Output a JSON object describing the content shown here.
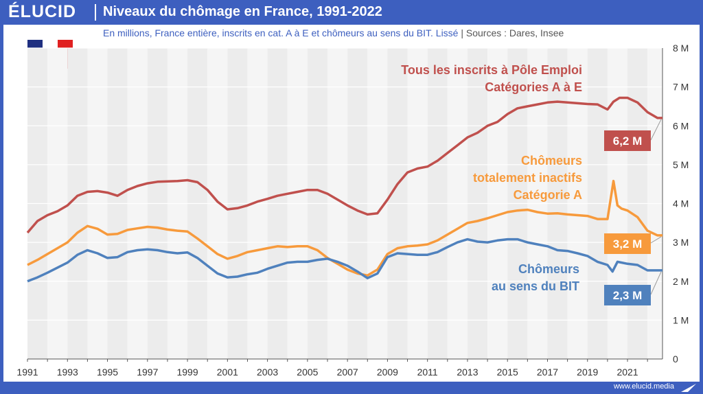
{
  "header": {
    "logo": "ÉLUCID",
    "title": "Niveaux du chômage en France, 1991-2022",
    "subtitle": "En millions, France entière, inscrits en cat. A à E et chômeurs au sens du BIT. Lissé",
    "sources": "| Sources : Dares, Insee"
  },
  "footer": {
    "url": "www.elucid.media"
  },
  "flag": {
    "colors": [
      "#1f2f80",
      "#ffffff",
      "#e02020"
    ]
  },
  "chart_data": {
    "type": "line",
    "xlim": [
      1991,
      2022.75
    ],
    "ylim": [
      0,
      8
    ],
    "grid": true,
    "y_ticks": [
      {
        "value": 0,
        "label": "0"
      },
      {
        "value": 1,
        "label": "1 M"
      },
      {
        "value": 2,
        "label": "2 M"
      },
      {
        "value": 3,
        "label": "3 M"
      },
      {
        "value": 4,
        "label": "4 M"
      },
      {
        "value": 5,
        "label": "5 M"
      },
      {
        "value": 6,
        "label": "6 M"
      },
      {
        "value": 7,
        "label": "7 M"
      },
      {
        "value": 8,
        "label": "8 M"
      }
    ],
    "x_ticks": [
      "1991",
      "1993",
      "1995",
      "1997",
      "1999",
      "2001",
      "2003",
      "2005",
      "2007",
      "2009",
      "2011",
      "2013",
      "2015",
      "2017",
      "2019",
      "2021"
    ],
    "series": [
      {
        "name": "Tous les inscrits à Pôle Emploi Catégories A à E",
        "color": "#c0504d",
        "label_lines": [
          "Tous les inscrits à Pôle Emploi",
          "Catégories A à E"
        ],
        "end_label": "6,2 M",
        "x": [
          1991,
          1991.5,
          1992,
          1992.5,
          1993,
          1993.5,
          1994,
          1994.5,
          1995,
          1995.5,
          1996,
          1996.5,
          1997,
          1997.5,
          1998,
          1998.5,
          1999,
          1999.5,
          2000,
          2000.5,
          2001,
          2001.5,
          2002,
          2002.5,
          2003,
          2003.5,
          2004,
          2004.5,
          2005,
          2005.5,
          2006,
          2006.5,
          2007,
          2007.5,
          2008,
          2008.5,
          2009,
          2009.5,
          2010,
          2010.5,
          2011,
          2011.5,
          2012,
          2012.5,
          2013,
          2013.5,
          2014,
          2014.5,
          2015,
          2015.5,
          2016,
          2016.5,
          2017,
          2017.5,
          2018,
          2018.5,
          2019,
          2019.5,
          2020,
          2020.3,
          2020.6,
          2021,
          2021.5,
          2022,
          2022.5,
          2022.75
        ],
        "y": [
          3.25,
          3.55,
          3.7,
          3.8,
          3.95,
          4.2,
          4.3,
          4.32,
          4.28,
          4.2,
          4.35,
          4.45,
          4.52,
          4.56,
          4.57,
          4.58,
          4.6,
          4.55,
          4.35,
          4.05,
          3.85,
          3.88,
          3.95,
          4.05,
          4.12,
          4.2,
          4.25,
          4.3,
          4.35,
          4.35,
          4.25,
          4.1,
          3.95,
          3.82,
          3.72,
          3.75,
          4.1,
          4.5,
          4.8,
          4.9,
          4.95,
          5.1,
          5.3,
          5.5,
          5.7,
          5.82,
          6.0,
          6.1,
          6.3,
          6.45,
          6.5,
          6.55,
          6.6,
          6.62,
          6.6,
          6.58,
          6.56,
          6.55,
          6.42,
          6.62,
          6.72,
          6.72,
          6.6,
          6.35,
          6.2,
          6.2
        ]
      },
      {
        "name": "Chômeurs totalement inactifs Catégorie A",
        "color": "#f79a3c",
        "label_lines": [
          "Chômeurs",
          "totalement inactifs",
          "Catégorie A"
        ],
        "end_label": "3,2 M",
        "x": [
          1991,
          1991.5,
          1992,
          1992.5,
          1993,
          1993.5,
          1994,
          1994.5,
          1995,
          1995.5,
          1996,
          1996.5,
          1997,
          1997.5,
          1998,
          1998.5,
          1999,
          1999.5,
          2000,
          2000.5,
          2001,
          2001.5,
          2002,
          2002.5,
          2003,
          2003.5,
          2004,
          2004.5,
          2005,
          2005.5,
          2006,
          2006.5,
          2007,
          2007.5,
          2008,
          2008.5,
          2009,
          2009.5,
          2010,
          2010.5,
          2011,
          2011.5,
          2012,
          2012.5,
          2013,
          2013.5,
          2014,
          2014.5,
          2015,
          2015.5,
          2016,
          2016.5,
          2017,
          2017.5,
          2018,
          2018.5,
          2019,
          2019.5,
          2020,
          2020.3,
          2020.5,
          2020.7,
          2021,
          2021.5,
          2022,
          2022.5,
          2022.75
        ],
        "y": [
          2.42,
          2.55,
          2.7,
          2.85,
          3.0,
          3.25,
          3.42,
          3.35,
          3.2,
          3.22,
          3.32,
          3.36,
          3.4,
          3.38,
          3.33,
          3.3,
          3.28,
          3.1,
          2.9,
          2.7,
          2.58,
          2.65,
          2.75,
          2.8,
          2.85,
          2.9,
          2.88,
          2.9,
          2.9,
          2.8,
          2.6,
          2.45,
          2.3,
          2.2,
          2.15,
          2.3,
          2.7,
          2.85,
          2.9,
          2.92,
          2.95,
          3.05,
          3.2,
          3.35,
          3.5,
          3.55,
          3.62,
          3.7,
          3.78,
          3.82,
          3.84,
          3.78,
          3.74,
          3.75,
          3.72,
          3.7,
          3.68,
          3.6,
          3.6,
          4.58,
          3.95,
          3.87,
          3.82,
          3.65,
          3.3,
          3.18,
          3.18
        ]
      },
      {
        "name": "Chômeurs au sens du BIT",
        "color": "#4f81bd",
        "label_lines": [
          "Chômeurs",
          "au sens du BIT"
        ],
        "end_label": "2,3 M",
        "x": [
          1991,
          1991.5,
          1992,
          1992.5,
          1993,
          1993.5,
          1994,
          1994.5,
          1995,
          1995.5,
          1996,
          1996.5,
          1997,
          1997.5,
          1998,
          1998.5,
          1999,
          1999.5,
          2000,
          2000.5,
          2001,
          2001.5,
          2002,
          2002.5,
          2003,
          2003.5,
          2004,
          2004.5,
          2005,
          2005.5,
          2006,
          2006.5,
          2007,
          2007.5,
          2008,
          2008.5,
          2009,
          2009.5,
          2010,
          2010.5,
          2011,
          2011.5,
          2012,
          2012.5,
          2013,
          2013.5,
          2014,
          2014.5,
          2015,
          2015.5,
          2016,
          2016.5,
          2017,
          2017.5,
          2018,
          2018.5,
          2019,
          2019.5,
          2020,
          2020.25,
          2020.5,
          2021,
          2021.5,
          2022,
          2022.5,
          2022.75
        ],
        "y": [
          2.0,
          2.1,
          2.22,
          2.35,
          2.48,
          2.68,
          2.8,
          2.72,
          2.6,
          2.62,
          2.75,
          2.8,
          2.82,
          2.8,
          2.75,
          2.72,
          2.74,
          2.6,
          2.4,
          2.2,
          2.1,
          2.12,
          2.18,
          2.22,
          2.32,
          2.4,
          2.48,
          2.5,
          2.5,
          2.55,
          2.58,
          2.5,
          2.4,
          2.25,
          2.08,
          2.2,
          2.62,
          2.72,
          2.7,
          2.68,
          2.68,
          2.75,
          2.88,
          3.0,
          3.08,
          3.02,
          3.0,
          3.05,
          3.08,
          3.08,
          3.0,
          2.95,
          2.9,
          2.8,
          2.78,
          2.72,
          2.65,
          2.5,
          2.42,
          2.25,
          2.5,
          2.45,
          2.42,
          2.28,
          2.28,
          2.28
        ]
      }
    ]
  }
}
